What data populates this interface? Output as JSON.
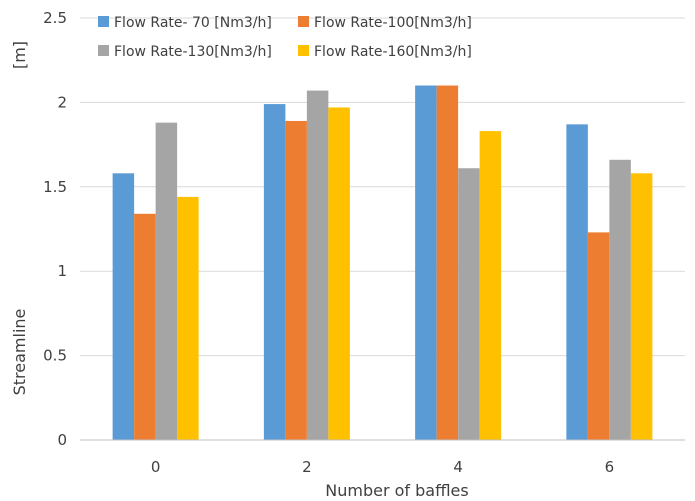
{
  "chart_data": {
    "type": "bar",
    "categories": [
      "0",
      "2",
      "4",
      "6"
    ],
    "series": [
      {
        "name": "Flow Rate- 70 [Nm3/h]",
        "color": "#5b9bd5",
        "values": [
          1.58,
          1.99,
          2.1,
          1.87
        ]
      },
      {
        "name": "Flow Rate-100[Nm3/h]",
        "color": "#ed7d31",
        "values": [
          1.34,
          1.89,
          2.1,
          1.23
        ]
      },
      {
        "name": "Flow Rate-130[Nm3/h]",
        "color": "#a5a5a5",
        "values": [
          1.88,
          2.07,
          1.61,
          1.66
        ]
      },
      {
        "name": "Flow Rate-160[Nm3/h]",
        "color": "#ffc000",
        "values": [
          1.44,
          1.97,
          1.83,
          1.58
        ]
      }
    ],
    "xlabel": "Number of baffles",
    "ylabel": "Streamline",
    "ylabel_unit": "[m]",
    "y_ticks": [
      "0",
      "0.5",
      "1",
      "1.5",
      "2",
      "2.5"
    ],
    "ylim": [
      0,
      2.5
    ],
    "grid": true,
    "legend_position": "top"
  }
}
